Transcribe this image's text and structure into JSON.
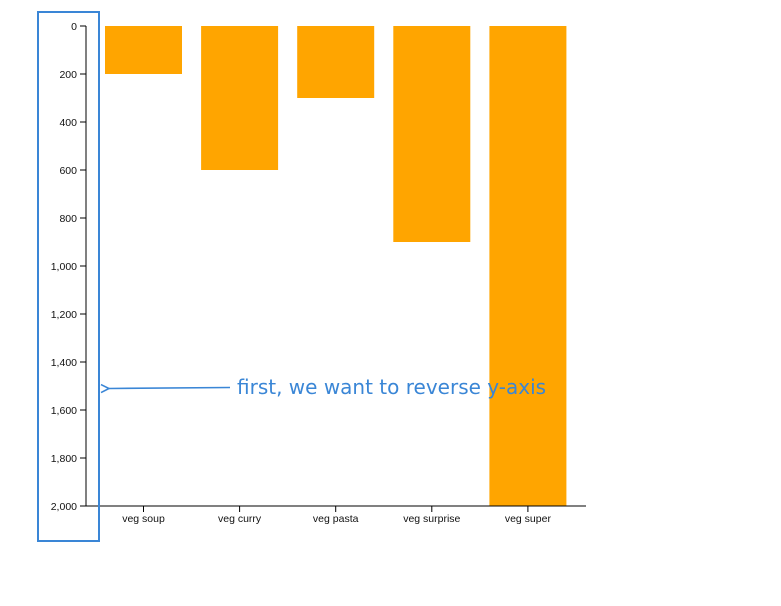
{
  "chart_data": {
    "type": "bar",
    "categories": [
      "veg soup",
      "veg curry",
      "veg pasta",
      "veg surprise",
      "veg super"
    ],
    "values": [
      200,
      600,
      300,
      900,
      2000
    ],
    "ylim": [
      0,
      2000
    ],
    "y_ticks": [
      0,
      200,
      400,
      600,
      800,
      1000,
      1200,
      1400,
      1600,
      1800,
      2000
    ],
    "y_tick_labels": [
      "0",
      "200",
      "400",
      "600",
      "800",
      "1,000",
      "1,200",
      "1,400",
      "1,600",
      "1,800",
      "2,000"
    ],
    "y_axis_inverted": true,
    "title": "",
    "xlabel": "",
    "ylabel": "",
    "grid": false,
    "bar_color": "#ffa500"
  },
  "annotation": {
    "text": "first, we want to reverse y-axis",
    "color": "#3a86d6"
  }
}
